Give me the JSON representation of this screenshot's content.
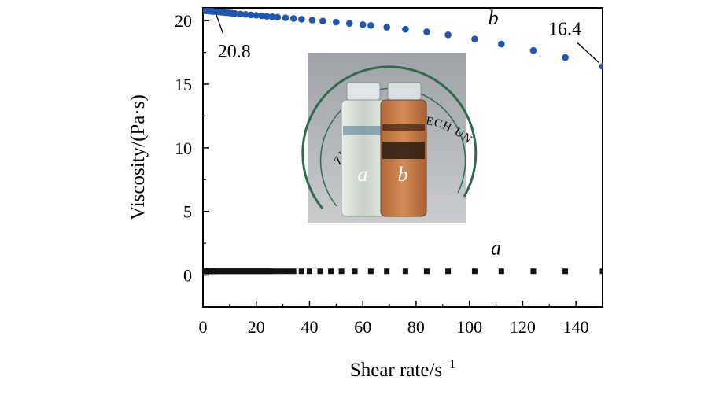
{
  "chart_data": {
    "type": "scatter",
    "xlabel": "Shear rate/s",
    "xlabel_exponent": "−1",
    "ylabel": "Viscosity/(Pa·s)",
    "xlim": [
      0,
      150
    ],
    "ylim": [
      -2.5,
      21
    ],
    "xticks": [
      0,
      20,
      40,
      60,
      80,
      100,
      120,
      140
    ],
    "yticks": [
      0,
      5,
      10,
      15,
      20
    ],
    "grid": false,
    "colors": {
      "a": "#111111",
      "b": "#1f57b0"
    },
    "series": [
      {
        "name": "a",
        "marker": "square",
        "x": [
          0.5,
          1,
          1.5,
          2,
          2.5,
          3,
          3.5,
          4,
          4.5,
          5,
          6,
          7,
          8,
          9,
          10,
          11,
          12,
          13,
          14,
          15,
          16,
          17,
          18,
          19,
          20,
          21,
          22,
          23,
          24,
          25,
          26,
          28,
          30,
          32,
          34,
          37,
          40,
          44,
          48,
          52,
          57,
          63,
          69,
          76,
          84,
          92,
          102,
          112,
          124,
          136,
          150
        ],
        "y": [
          0.3,
          0.3,
          0.3,
          0.3,
          0.3,
          0.3,
          0.3,
          0.3,
          0.3,
          0.3,
          0.3,
          0.3,
          0.3,
          0.3,
          0.3,
          0.3,
          0.3,
          0.3,
          0.3,
          0.3,
          0.3,
          0.3,
          0.3,
          0.3,
          0.3,
          0.3,
          0.3,
          0.3,
          0.3,
          0.3,
          0.3,
          0.3,
          0.3,
          0.3,
          0.3,
          0.3,
          0.3,
          0.3,
          0.3,
          0.3,
          0.3,
          0.3,
          0.3,
          0.3,
          0.3,
          0.3,
          0.3,
          0.3,
          0.3,
          0.3,
          0.3
        ]
      },
      {
        "name": "b",
        "marker": "circle",
        "x": [
          0.5,
          1,
          1.5,
          2,
          2.5,
          3,
          3.5,
          4,
          5,
          6,
          7,
          8,
          9,
          10,
          11,
          12,
          14,
          16,
          18,
          20,
          22,
          24,
          26,
          28,
          31,
          34,
          37,
          41,
          45,
          50,
          55,
          60,
          63,
          69,
          76,
          84,
          92,
          102,
          112,
          124,
          136,
          150
        ],
        "y": [
          20.8,
          20.78,
          20.77,
          20.76,
          20.75,
          20.74,
          20.73,
          20.72,
          20.7,
          20.68,
          20.66,
          20.64,
          20.62,
          20.6,
          20.58,
          20.56,
          20.52,
          20.49,
          20.45,
          20.42,
          20.38,
          20.34,
          20.3,
          20.27,
          20.22,
          20.17,
          20.11,
          20.04,
          19.97,
          19.88,
          19.78,
          19.68,
          19.62,
          19.48,
          19.32,
          19.12,
          18.88,
          18.55,
          18.15,
          17.65,
          17.1,
          16.4
        ]
      }
    ],
    "annotations": [
      {
        "text": "20.8",
        "x": 0.5,
        "y": 20.8
      },
      {
        "text": "16.4",
        "x": 150,
        "y": 16.4
      }
    ],
    "series_labels": [
      {
        "text": "a",
        "x": 110,
        "y": 1.6
      },
      {
        "text": "b",
        "x": 109,
        "y": 19.7
      }
    ],
    "inset_photo": {
      "banner_text": "ZHEJIANG SCI-TECH UNIVERSITY",
      "vial_labels": [
        "a",
        "b"
      ]
    }
  }
}
